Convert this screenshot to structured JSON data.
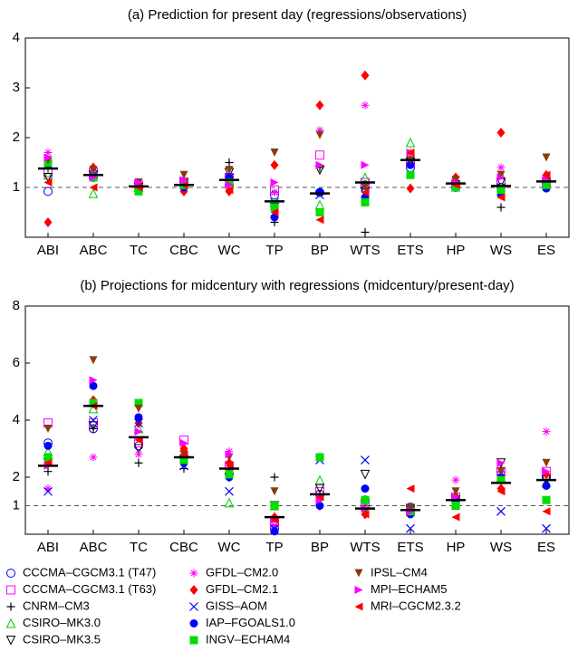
{
  "chart_data": [
    {
      "type": "dot",
      "title": "(a) Prediction for present day (regressions/observations)",
      "categories": [
        "ABI",
        "ABC",
        "TC",
        "CBC",
        "WC",
        "TP",
        "BP",
        "WTS",
        "ETS",
        "HP",
        "WS",
        "ES"
      ],
      "ylim": [
        0,
        4
      ],
      "yticks": [
        1,
        2,
        3,
        4
      ],
      "reference_line": 1,
      "means": [
        1.38,
        1.25,
        1.02,
        1.05,
        1.15,
        0.72,
        0.88,
        1.1,
        1.55,
        1.08,
        1.03,
        1.12
      ],
      "series": [
        {
          "values": [
            0.92,
            1.2,
            1.0,
            1.05,
            1.05,
            0.85,
            0.9,
            1.05,
            1.4,
            1.0,
            1.0,
            1.05
          ]
        },
        {
          "values": [
            1.3,
            1.3,
            1.05,
            1.1,
            1.2,
            0.95,
            1.65,
            1.1,
            1.5,
            1.05,
            1.1,
            1.1
          ]
        },
        {
          "values": [
            1.4,
            1.2,
            1.0,
            1.0,
            1.5,
            0.3,
            1.4,
            0.1,
            1.6,
            1.0,
            0.6,
            1.1
          ]
        },
        {
          "values": [
            1.25,
            0.88,
            1.0,
            1.1,
            1.2,
            0.7,
            0.65,
            1.2,
            1.9,
            1.1,
            1.25,
            1.15
          ]
        },
        {
          "values": [
            1.2,
            1.25,
            1.0,
            1.1,
            1.3,
            0.6,
            1.35,
            0.9,
            1.5,
            1.05,
            1.1,
            1.1
          ]
        },
        {
          "values": [
            1.7,
            1.3,
            1.05,
            1.15,
            1.2,
            0.9,
            2.15,
            2.65,
            1.7,
            1.1,
            1.4,
            1.2
          ]
        },
        {
          "values": [
            0.3,
            1.4,
            1.05,
            0.92,
            0.92,
            1.45,
            2.65,
            3.25,
            0.98,
            1.2,
            2.1,
            1.25
          ]
        },
        {
          "values": [
            1.45,
            1.25,
            1.0,
            1.05,
            1.2,
            0.7,
            0.85,
            1.0,
            1.55,
            1.0,
            1.0,
            1.05
          ]
        },
        {
          "values": [
            1.55,
            1.2,
            0.98,
            1.0,
            1.2,
            0.4,
            0.9,
            0.8,
            1.45,
            1.02,
            0.85,
            0.98
          ]
        },
        {
          "values": [
            1.5,
            1.2,
            0.92,
            1.05,
            1.1,
            0.6,
            0.5,
            0.7,
            1.25,
            1.0,
            0.95,
            1.05
          ]
        },
        {
          "values": [
            1.55,
            1.35,
            1.1,
            1.25,
            1.35,
            1.7,
            2.05,
            1.0,
            1.55,
            1.15,
            1.25,
            1.6
          ]
        },
        {
          "values": [
            1.6,
            1.2,
            1.1,
            1.15,
            1.05,
            1.1,
            1.45,
            1.45,
            1.7,
            1.1,
            1.2,
            1.15
          ]
        },
        {
          "values": [
            1.1,
            1.0,
            1.0,
            1.05,
            0.95,
            0.5,
            0.35,
            0.9,
            1.7,
            1.05,
            0.8,
            1.25
          ]
        }
      ]
    },
    {
      "type": "dot",
      "title": "(b) Projections for midcentury with regressions (midcentury/present-day)",
      "categories": [
        "ABI",
        "ABC",
        "TC",
        "CBC",
        "WC",
        "TP",
        "BP",
        "WTS",
        "ETS",
        "HP",
        "WS",
        "ES"
      ],
      "ylim": [
        0,
        8
      ],
      "yticks": [
        1,
        2,
        4,
        6,
        8
      ],
      "reference_line": 1,
      "means": [
        2.4,
        4.5,
        3.4,
        2.7,
        2.3,
        0.6,
        1.4,
        0.9,
        0.85,
        1.2,
        1.8,
        1.9
      ],
      "series": [
        {
          "values": [
            3.2,
            3.7,
            3.1,
            2.7,
            2.1,
            0.2,
            1.4,
            1.2,
            0.95,
            1.2,
            2.1,
            2.0
          ]
        },
        {
          "values": [
            3.9,
            3.9,
            3.2,
            3.3,
            2.4,
            0.4,
            1.5,
            1.0,
            0.8,
            1.3,
            2.2,
            2.2
          ]
        },
        {
          "values": [
            2.2,
            3.7,
            2.5,
            2.3,
            2.3,
            2.0,
            1.3,
            1.0,
            0.9,
            1.2,
            1.9,
            1.9
          ]
        },
        {
          "values": [
            2.9,
            4.4,
            3.7,
            2.8,
            1.1,
            1.0,
            1.9,
            1.0,
            0.8,
            1.4,
            2.0,
            1.8
          ]
        },
        {
          "values": [
            2.5,
            3.8,
            3.0,
            2.6,
            2.0,
            1.0,
            1.6,
            2.1,
            0.9,
            1.2,
            2.5,
            1.9
          ]
        },
        {
          "values": [
            1.6,
            2.7,
            2.8,
            2.9,
            2.9,
            0.3,
            1.0,
            1.1,
            0.9,
            1.9,
            2.1,
            3.6
          ]
        },
        {
          "values": [
            2.6,
            4.7,
            3.9,
            3.0,
            2.5,
            0.6,
            1.0,
            0.7,
            0.8,
            1.3,
            1.6,
            2.1
          ]
        },
        {
          "values": [
            1.5,
            4.0,
            3.9,
            2.4,
            1.5,
            0.2,
            2.6,
            2.6,
            0.2,
            1.0,
            0.8,
            0.2
          ]
        },
        {
          "values": [
            3.1,
            5.2,
            4.1,
            2.5,
            2.0,
            0.1,
            1.0,
            1.6,
            0.7,
            1.2,
            2.0,
            1.7
          ]
        },
        {
          "values": [
            2.7,
            4.6,
            4.6,
            2.6,
            2.1,
            1.0,
            2.7,
            1.2,
            0.8,
            1.0,
            1.9,
            1.2
          ]
        },
        {
          "values": [
            3.7,
            6.1,
            4.4,
            2.8,
            2.7,
            1.5,
            1.2,
            0.8,
            0.9,
            1.5,
            2.2,
            2.5
          ]
        },
        {
          "values": [
            2.4,
            5.4,
            3.6,
            3.2,
            2.8,
            0.5,
            1.2,
            0.9,
            0.8,
            1.3,
            2.5,
            2.2
          ]
        },
        {
          "values": [
            2.5,
            4.5,
            3.3,
            2.8,
            2.4,
            0.5,
            1.3,
            0.7,
            1.6,
            0.6,
            1.5,
            0.8
          ]
        }
      ]
    }
  ],
  "legend": {
    "entries": [
      {
        "name": "CCCMA–CGCM3.1 (T47)",
        "color": "#0000ff",
        "marker": "circle-open"
      },
      {
        "name": "CCCMA–CGCM3.1 (T63)",
        "color": "#ff00ff",
        "marker": "square-open"
      },
      {
        "name": "CNRM–CM3",
        "color": "#000000",
        "marker": "plus"
      },
      {
        "name": "CSIRO–MK3.0",
        "color": "#00cc00",
        "marker": "triangle-up-open"
      },
      {
        "name": "CSIRO–MK3.5",
        "color": "#000000",
        "marker": "triangle-down-open"
      },
      {
        "name": "GFDL–CM2.0",
        "color": "#ff00ff",
        "marker": "asterisk"
      },
      {
        "name": "GFDL–CM2.1",
        "color": "#ff0000",
        "marker": "diamond"
      },
      {
        "name": "GISS–AOM",
        "color": "#0000ff",
        "marker": "x"
      },
      {
        "name": "IAP–FGOALS1.0",
        "color": "#0000ff",
        "marker": "circle"
      },
      {
        "name": "INGV–ECHAM4",
        "color": "#00dd00",
        "marker": "square"
      },
      {
        "name": "IPSL–CM4",
        "color": "#8b3a0f",
        "marker": "triangle-down"
      },
      {
        "name": "MPI–ECHAM5",
        "color": "#ff00ff",
        "marker": "triangle-right"
      },
      {
        "name": "MRI–CGCM2.3.2",
        "color": "#ff0000",
        "marker": "triangle-left"
      }
    ]
  }
}
